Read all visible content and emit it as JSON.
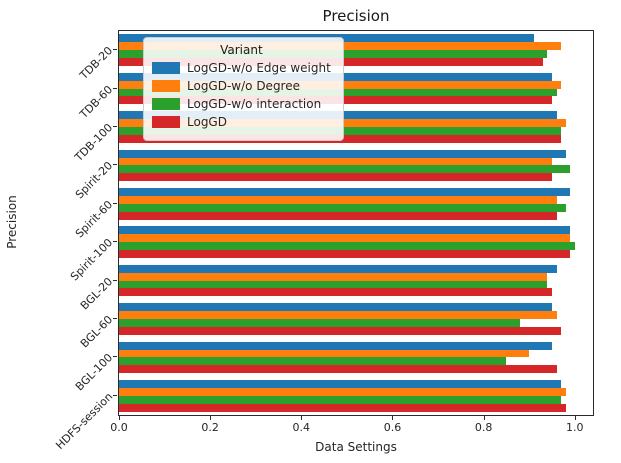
{
  "legend_title": "Variant",
  "chart_data": {
    "type": "bar",
    "orientation": "horizontal",
    "title": "Precision",
    "xlabel": "Data Settings",
    "ylabel": "Precision",
    "categories": [
      "TDB-20",
      "TDB-60",
      "TDB-100",
      "Spirit-20",
      "Spirit-60",
      "Spirit-100",
      "BGL-20",
      "BGL-60",
      "BGL-100",
      "HDFS-session"
    ],
    "series": [
      {
        "name": "LogGD-w/o Edge weight",
        "color": "#1f77b4",
        "values": [
          0.91,
          0.95,
          0.96,
          0.98,
          0.99,
          0.99,
          0.96,
          0.95,
          0.95,
          0.97
        ]
      },
      {
        "name": "LogGD-w/o Degree",
        "color": "#ff7f0e",
        "values": [
          0.97,
          0.97,
          0.98,
          0.95,
          0.96,
          0.99,
          0.94,
          0.96,
          0.9,
          0.98
        ]
      },
      {
        "name": "LogGD-w/o interaction",
        "color": "#2ca02c",
        "values": [
          0.94,
          0.96,
          0.97,
          0.99,
          0.98,
          1.0,
          0.94,
          0.88,
          0.85,
          0.97
        ]
      },
      {
        "name": "LogGD",
        "color": "#d62728",
        "values": [
          0.93,
          0.95,
          0.97,
          0.95,
          0.96,
          0.99,
          0.95,
          0.97,
          0.96,
          0.98
        ]
      }
    ],
    "xlim": [
      0,
      1.04
    ],
    "xticks": [
      0.0,
      0.2,
      0.4,
      0.6,
      0.8,
      1.0
    ],
    "grid": false,
    "legend": {
      "title": "Variant",
      "position": "upper-left"
    }
  }
}
